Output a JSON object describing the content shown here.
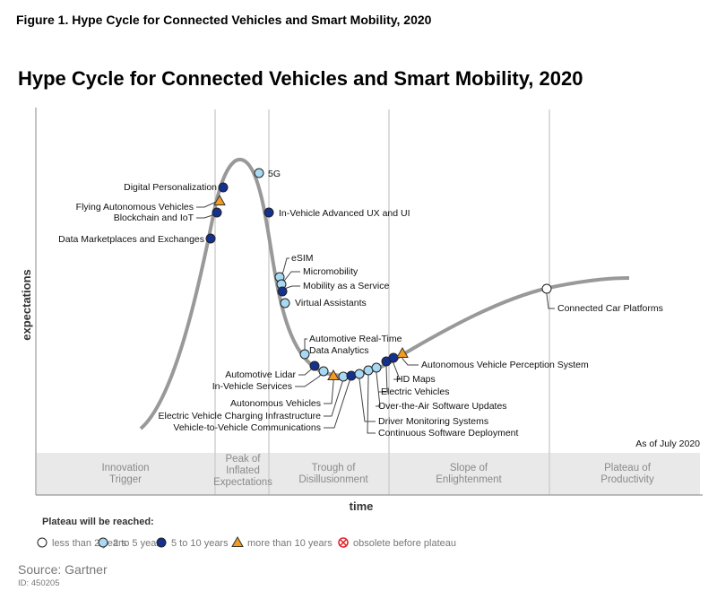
{
  "figure_caption": "Figure 1. Hype Cycle for Connected Vehicles and Smart Mobility, 2020",
  "title": "Hype Cycle for Connected Vehicles and Smart Mobility, 2020",
  "y_axis_label": "expectations",
  "x_axis_label": "time",
  "as_of": "As of July 2020",
  "phases": [
    "Innovation\nTrigger",
    "Peak of\nInflated\nExpectations",
    "Trough of\nDisillusionment",
    "Slope of\nEnlightenment",
    "Plateau of\nProductivity"
  ],
  "legend": {
    "title": "Plateau will be reached:",
    "items": [
      {
        "key": "lt2",
        "label": "less than 2 years",
        "shape": "circle",
        "color": "#ffffff"
      },
      {
        "key": "2to5",
        "label": "2 to 5 years",
        "shape": "circle",
        "color": "#a9d9f2"
      },
      {
        "key": "5to10",
        "label": "5 to 10 years",
        "shape": "circle",
        "color": "#14318f"
      },
      {
        "key": "gt10",
        "label": "more than 10 years",
        "shape": "triangle",
        "color": "#f39c1f"
      },
      {
        "key": "obs",
        "label": "obsolete before plateau",
        "shape": "crossed-circle",
        "color": "#e0202a"
      }
    ]
  },
  "technologies": [
    {
      "name": "5G",
      "plateau": "2to5"
    },
    {
      "name": "Digital Personalization",
      "plateau": "5to10"
    },
    {
      "name": "Flying Autonomous Vehicles",
      "plateau": "gt10"
    },
    {
      "name": "Blockchain and IoT",
      "plateau": "5to10"
    },
    {
      "name": "Data Marketplaces and Exchanges",
      "plateau": "5to10"
    },
    {
      "name": "In-Vehicle Advanced UX and UI",
      "plateau": "5to10"
    },
    {
      "name": "eSIM",
      "plateau": "2to5"
    },
    {
      "name": "Micromobility",
      "plateau": "2to5"
    },
    {
      "name": "Mobility as a Service",
      "plateau": "5to10"
    },
    {
      "name": "Virtual Assistants",
      "plateau": "2to5"
    },
    {
      "name": "Automotive Real-Time\nData Analytics",
      "plateau": "2to5"
    },
    {
      "name": "Automotive Lidar",
      "plateau": "5to10"
    },
    {
      "name": "In-Vehicle Services",
      "plateau": "2to5"
    },
    {
      "name": "Autonomous Vehicles",
      "plateau": "gt10"
    },
    {
      "name": "Electric Vehicle Charging Infrastructure",
      "plateau": "2to5"
    },
    {
      "name": "Vehicle-to-Vehicle Communications",
      "plateau": "5to10"
    },
    {
      "name": "Driver Monitoring Systems",
      "plateau": "2to5"
    },
    {
      "name": "Continuous Software Deployment",
      "plateau": "2to5"
    },
    {
      "name": "Over-the-Air Software Updates",
      "plateau": "2to5"
    },
    {
      "name": "Electric Vehicles",
      "plateau": "5to10"
    },
    {
      "name": "HD Maps",
      "plateau": "5to10"
    },
    {
      "name": "Autonomous Vehicle Perception System",
      "plateau": "gt10"
    },
    {
      "name": "Connected Car Platforms",
      "plateau": "lt2"
    }
  ],
  "source": "Source: Gartner",
  "id": "ID: 450205"
}
